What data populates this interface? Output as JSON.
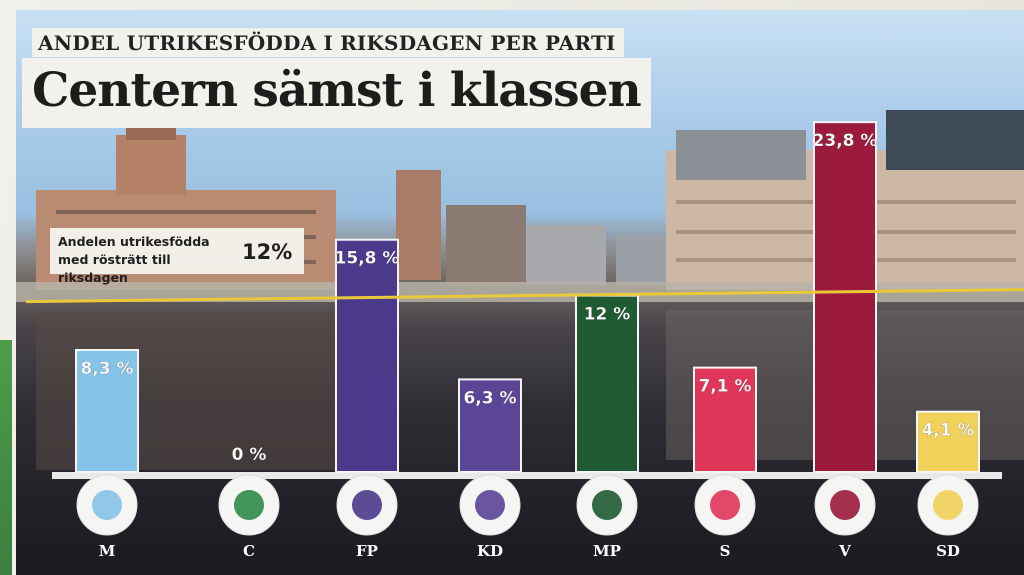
{
  "header": {
    "subtitle": "ANDEL UTRIKESFÖDDA I RIKSDAGEN PER PARTI",
    "title": "Centern sämst i klassen"
  },
  "reference": {
    "label_line1": "Andelen utrikesfödda",
    "label_line2": "med rösträtt till riksdagen",
    "value_label": "12%",
    "value": 12,
    "color": "#e9c93a"
  },
  "chart_data": {
    "type": "bar",
    "title": "Centern sämst i klassen",
    "subtitle": "ANDEL UTRIKESFÖDDA I RIKSDAGEN PER PARTI",
    "categories": [
      "M",
      "C",
      "FP",
      "KD",
      "MP",
      "S",
      "V",
      "SD"
    ],
    "values": [
      8.3,
      0,
      15.8,
      6.3,
      12,
      7.1,
      23.8,
      4.1
    ],
    "value_labels": [
      "8,3 %",
      "0 %",
      "15,8 %",
      "6,3 %",
      "12 %",
      "7,1 %",
      "23,8 %",
      "4,1 %"
    ],
    "colors": [
      "#86c3e8",
      "#2f8b48",
      "#4b3a8c",
      "#5b4597",
      "#1f5a33",
      "#e0365a",
      "#9c1b3c",
      "#f2d15a"
    ],
    "logo_icons": [
      "nya-moderaterna-logo-icon",
      "four-leaf-clover-icon",
      "cornflower-icon",
      "flower-cross-icon",
      "dandelion-icon",
      "rose-icon",
      "v-logo-icon",
      "blue-anemone-icon"
    ],
    "reference_line": {
      "value": 12,
      "label": "12%"
    },
    "ylim": [
      0,
      25
    ],
    "grid": false,
    "xlabel": "",
    "ylabel": ""
  }
}
